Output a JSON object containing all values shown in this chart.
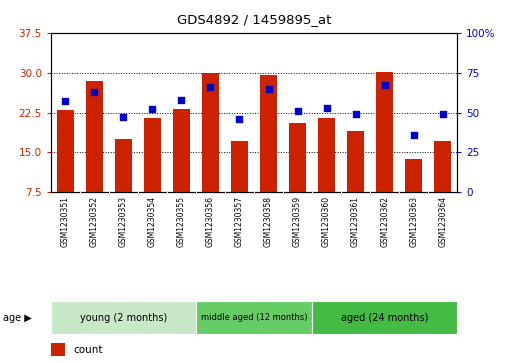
{
  "title": "GDS4892 / 1459895_at",
  "samples": [
    "GSM1230351",
    "GSM1230352",
    "GSM1230353",
    "GSM1230354",
    "GSM1230355",
    "GSM1230356",
    "GSM1230357",
    "GSM1230358",
    "GSM1230359",
    "GSM1230360",
    "GSM1230361",
    "GSM1230362",
    "GSM1230363",
    "GSM1230364"
  ],
  "counts": [
    23.0,
    28.5,
    17.5,
    21.5,
    23.2,
    30.0,
    17.2,
    29.5,
    20.5,
    21.5,
    19.0,
    30.1,
    13.8,
    17.2
  ],
  "percentile_ranks": [
    57,
    63,
    47,
    52,
    58,
    66,
    46,
    65,
    51,
    53,
    49,
    67,
    36,
    49
  ],
  "ylim_left": [
    7.5,
    37.5
  ],
  "ylim_right": [
    0,
    100
  ],
  "yticks_left": [
    7.5,
    15,
    22.5,
    30,
    37.5
  ],
  "yticks_right": [
    0,
    25,
    50,
    75,
    100
  ],
  "grid_values": [
    15,
    22.5,
    30
  ],
  "bar_color": "#cc2200",
  "dot_color": "#0000cc",
  "groups": [
    {
      "label": "young (2 months)",
      "start": 0,
      "end": 5
    },
    {
      "label": "middle aged (12 months)",
      "start": 5,
      "end": 9
    },
    {
      "label": "aged (24 months)",
      "start": 9,
      "end": 14
    }
  ],
  "group_colors": [
    "#c8e8c8",
    "#66cc66",
    "#44bb44"
  ],
  "tick_bg_color": "#cccccc",
  "bg_color": "#ffffff"
}
